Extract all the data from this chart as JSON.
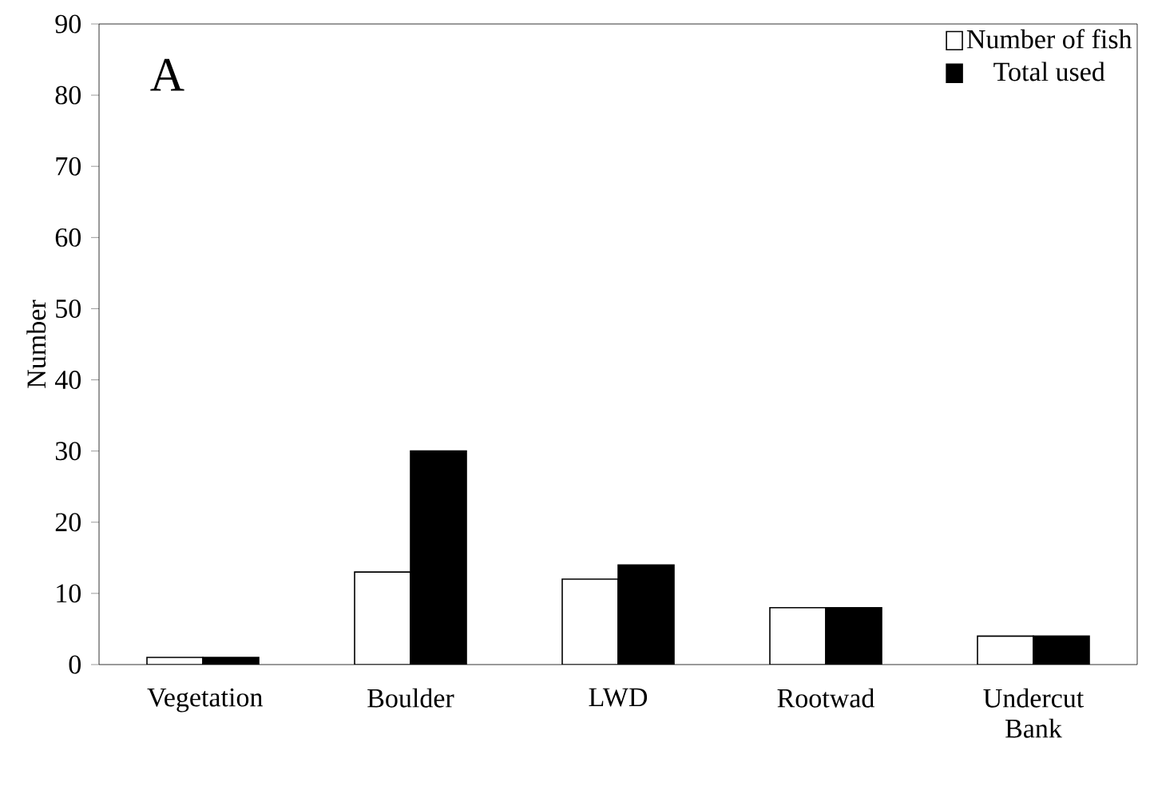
{
  "chart_data": {
    "type": "bar",
    "ylabel": "Number",
    "annotations": [
      "A"
    ],
    "categories": [
      "Vegetation",
      "Boulder",
      "LWD",
      "Rootwad",
      "Undercut Bank"
    ],
    "series": [
      {
        "name": "Number of fish",
        "color": "#ffffff",
        "values": [
          1,
          13,
          12,
          8,
          4
        ]
      },
      {
        "name": "Total used",
        "color": "#000000",
        "values": [
          1,
          30,
          14,
          8,
          4
        ]
      }
    ],
    "ylim": [
      0,
      90
    ],
    "yticks": [
      0,
      10,
      20,
      30,
      40,
      50,
      60,
      70,
      80,
      90
    ],
    "grid": false,
    "legend": "top right"
  }
}
